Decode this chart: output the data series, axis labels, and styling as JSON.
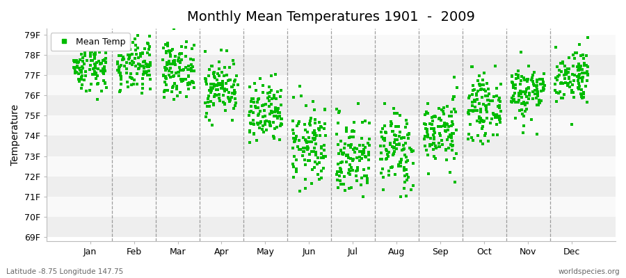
{
  "title": "Monthly Mean Temperatures 1901  -  2009",
  "ylabel": "Temperature",
  "xlabel_labels": [
    "Jan",
    "Feb",
    "Mar",
    "Apr",
    "May",
    "Jun",
    "Jul",
    "Aug",
    "Sep",
    "Oct",
    "Nov",
    "Dec"
  ],
  "ytick_labels": [
    "69F",
    "70F",
    "71F",
    "72F",
    "73F",
    "74F",
    "75F",
    "76F",
    "77F",
    "78F",
    "79F"
  ],
  "ytick_values": [
    69,
    70,
    71,
    72,
    73,
    74,
    75,
    76,
    77,
    78,
    79
  ],
  "ylim": [
    68.8,
    79.3
  ],
  "dot_color": "#00bb00",
  "dot_size": 9,
  "background_color": "#ffffff",
  "stripe_colors": [
    "#eeeeee",
    "#f9f9f9"
  ],
  "legend_label": "Mean Temp",
  "footer_left": "Latitude -8.75 Longitude 147.75",
  "footer_right": "worldspecies.org",
  "title_fontsize": 14,
  "axis_label_fontsize": 10,
  "tick_fontsize": 9,
  "monthly_means": [
    77.5,
    77.4,
    77.3,
    76.4,
    75.0,
    73.5,
    73.0,
    73.3,
    74.2,
    75.4,
    76.2,
    77.0
  ],
  "monthly_stds": [
    0.65,
    0.65,
    0.65,
    0.7,
    0.8,
    1.0,
    1.0,
    1.0,
    0.85,
    0.75,
    0.7,
    0.7
  ],
  "n_years": 109,
  "seed": 42,
  "xlim": [
    0.0,
    13.0
  ]
}
